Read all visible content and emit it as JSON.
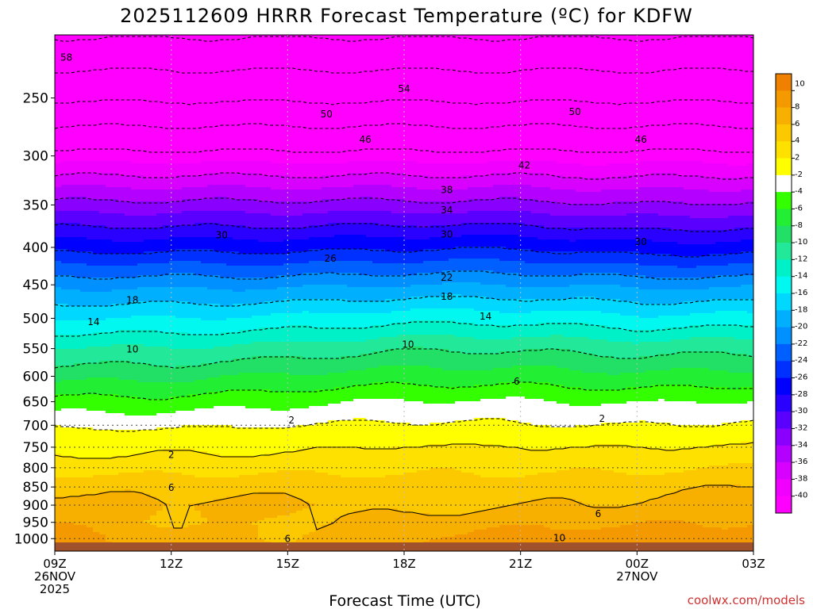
{
  "chart_data": {
    "type": "heatmap",
    "title": "2025112609 HRRR Forecast Temperature (ºC) for KDFW",
    "xlabel": "Forecast Time (UTC)",
    "ylabel": "",
    "x_hours": [
      0,
      3,
      6,
      9,
      12,
      15,
      18
    ],
    "x_tick_labels": [
      {
        "hour": 0,
        "lines": [
          "09Z",
          "26NOV",
          "2025"
        ]
      },
      {
        "hour": 3,
        "lines": [
          "12Z"
        ]
      },
      {
        "hour": 6,
        "lines": [
          "15Z"
        ]
      },
      {
        "hour": 9,
        "lines": [
          "18Z"
        ]
      },
      {
        "hour": 12,
        "lines": [
          "21Z"
        ]
      },
      {
        "hour": 15,
        "lines": [
          "00Z",
          "27NOV"
        ]
      },
      {
        "hour": 18,
        "lines": [
          "03Z"
        ]
      }
    ],
    "xlim": [
      0,
      18
    ],
    "y_axis": "pressure (hPa), log scale, inverted",
    "ylim": [
      1040,
      205
    ],
    "y_ticks": [
      250,
      300,
      350,
      400,
      450,
      500,
      550,
      600,
      650,
      700,
      750,
      800,
      850,
      900,
      950,
      1000
    ],
    "surface_pressure": 1012,
    "colorbar": {
      "ticks": [
        10,
        8,
        6,
        4,
        2,
        -2,
        -4,
        -6,
        -8,
        -10,
        -12,
        -14,
        -16,
        -18,
        -20,
        -22,
        -24,
        -26,
        -28,
        -30,
        -32,
        -34,
        -36,
        -38,
        -40
      ],
      "colors": [
        "#f08000",
        "#f49a00",
        "#f8b000",
        "#fcc800",
        "#ffe100",
        "#ffff00",
        "#ffffff",
        "#33ff00",
        "#22ee33",
        "#22e066",
        "#22e899",
        "#00f0c8",
        "#00f8f0",
        "#00d8ff",
        "#00b0ff",
        "#0090ff",
        "#0060ff",
        "#0030ff",
        "#0000ff",
        "#2a00ff",
        "#5a00ff",
        "#8a00ff",
        "#b400ff",
        "#d800ff",
        "#f000ff",
        "#ff00ff"
      ]
    },
    "isotherm_profiles": [
      {
        "hour": 0,
        "pressure_hPa": [
          1000,
          950,
          900,
          850,
          800,
          750,
          700,
          650,
          600,
          550,
          500,
          450,
          400,
          350,
          300,
          250
        ],
        "temperature_C": [
          9,
          8,
          7,
          5.5,
          3.2,
          1.2,
          -2.5,
          -5.2,
          -8.6,
          -11.8,
          -16,
          -20.5,
          -26.7,
          -33.2,
          -41,
          -50.5
        ]
      },
      {
        "hour": 3,
        "pressure_hPa": [
          1000,
          950,
          900,
          850,
          800,
          750,
          700,
          650,
          600,
          550,
          500,
          450,
          400,
          350,
          300,
          250
        ],
        "temperature_C": [
          7,
          5.8,
          6.3,
          5.4,
          3.3,
          1.5,
          -2.5,
          -5.2,
          -8.6,
          -11.8,
          -16,
          -20.5,
          -26.7,
          -33.2,
          -41,
          -50.5
        ]
      },
      {
        "hour": 6,
        "pressure_hPa": [
          1000,
          950,
          900,
          850,
          800,
          750,
          700,
          650,
          600,
          550,
          500,
          450,
          400,
          350,
          300,
          250
        ],
        "temperature_C": [
          6,
          5.8,
          6.6,
          5.3,
          3.4,
          1.5,
          -2,
          -4.5,
          -7.6,
          -11.2,
          -15.5,
          -20.5,
          -26.7,
          -33.2,
          -41,
          -50.5
        ]
      },
      {
        "hour": 9,
        "pressure_hPa": [
          1000,
          950,
          900,
          850,
          800,
          750,
          700,
          650,
          600,
          550,
          500,
          450,
          400,
          350,
          300,
          250
        ],
        "temperature_C": [
          8,
          6.5,
          5.3,
          4.8,
          3.6,
          2.4,
          -1.5,
          -3.8,
          -7,
          -10.2,
          -14.7,
          -20,
          -26.2,
          -33.2,
          -41,
          -50.5
        ]
      },
      {
        "hour": 12,
        "pressure_hPa": [
          1000,
          950,
          900,
          850,
          800,
          750,
          700,
          650,
          600,
          550,
          500,
          450,
          400,
          350,
          300,
          250
        ],
        "temperature_C": [
          9,
          7.5,
          6,
          5,
          3.6,
          2.2,
          -1.8,
          -3.8,
          -7,
          -10.2,
          -14.7,
          -20,
          -26.2,
          -33.2,
          -41,
          -50.5
        ]
      },
      {
        "hour": 15,
        "pressure_hPa": [
          1000,
          950,
          900,
          850,
          800,
          750,
          700,
          650,
          600,
          550,
          500,
          450,
          400,
          350,
          300,
          250
        ],
        "temperature_C": [
          9,
          7.8,
          6.3,
          5.3,
          3.6,
          2,
          -2,
          -4.2,
          -7.5,
          -10.8,
          -15.5,
          -20.5,
          -27.2,
          -33.8,
          -41,
          -50.5
        ]
      },
      {
        "hour": 18,
        "pressure_hPa": [
          1000,
          950,
          900,
          850,
          800,
          750,
          700,
          650,
          600,
          550,
          500,
          450,
          400,
          350,
          300,
          250
        ],
        "temperature_C": [
          9,
          8,
          7,
          6.2,
          4,
          2.6,
          -1.5,
          -3.8,
          -7.2,
          -10.5,
          -15.2,
          -20.5,
          -27,
          -33.5,
          -41,
          -50.5
        ]
      }
    ],
    "contour_labels": [
      {
        "text": "58",
        "hour": 0.3,
        "pressure": 220,
        "style": "dashed"
      },
      {
        "text": "54",
        "hour": 9,
        "pressure": 243,
        "style": "dashed"
      },
      {
        "text": "50",
        "hour": 7,
        "pressure": 263,
        "style": "dashed"
      },
      {
        "text": "50",
        "hour": 13.4,
        "pressure": 261,
        "style": "dashed"
      },
      {
        "text": "46",
        "hour": 8,
        "pressure": 285,
        "style": "dashed"
      },
      {
        "text": "46",
        "hour": 15.1,
        "pressure": 285,
        "style": "dashed"
      },
      {
        "text": "42",
        "hour": 12.1,
        "pressure": 309,
        "style": "dashed"
      },
      {
        "text": "38",
        "hour": 10.1,
        "pressure": 334,
        "style": "dashed"
      },
      {
        "text": "34",
        "hour": 10.1,
        "pressure": 356,
        "style": "dashed"
      },
      {
        "text": "30",
        "hour": 4.3,
        "pressure": 385,
        "style": "dashed"
      },
      {
        "text": "30",
        "hour": 10.1,
        "pressure": 384,
        "style": "dashed"
      },
      {
        "text": "30",
        "hour": 15.1,
        "pressure": 393,
        "style": "dashed"
      },
      {
        "text": "26",
        "hour": 7.1,
        "pressure": 414,
        "style": "dashed"
      },
      {
        "text": "22",
        "hour": 10.1,
        "pressure": 440,
        "style": "dashed"
      },
      {
        "text": "18",
        "hour": 2,
        "pressure": 472,
        "style": "dashed"
      },
      {
        "text": "18",
        "hour": 10.1,
        "pressure": 467,
        "style": "dashed"
      },
      {
        "text": "14",
        "hour": 1,
        "pressure": 506,
        "style": "dashed"
      },
      {
        "text": "14",
        "hour": 11.1,
        "pressure": 497,
        "style": "dashed"
      },
      {
        "text": "10",
        "hour": 2,
        "pressure": 551,
        "style": "dashed"
      },
      {
        "text": "10",
        "hour": 9.1,
        "pressure": 543,
        "style": "dashed"
      },
      {
        "text": "6",
        "hour": 11.9,
        "pressure": 610,
        "style": "dashed"
      },
      {
        "text": "2",
        "hour": 6.1,
        "pressure": 689,
        "style": "dashed"
      },
      {
        "text": "2",
        "hour": 14.1,
        "pressure": 686,
        "style": "dashed"
      },
      {
        "text": "2",
        "hour": 3,
        "pressure": 768,
        "style": "solid"
      },
      {
        "text": "6",
        "hour": 3,
        "pressure": 852,
        "style": "solid"
      },
      {
        "text": "6",
        "hour": 14,
        "pressure": 925,
        "style": "solid"
      },
      {
        "text": "6",
        "hour": 6,
        "pressure": 1000,
        "style": "solid"
      },
      {
        "text": "10",
        "hour": 13,
        "pressure": 998,
        "style": "solid"
      }
    ],
    "grid": true,
    "legend_placement": "right colorbar"
  },
  "credit": "coolwx.com/models"
}
